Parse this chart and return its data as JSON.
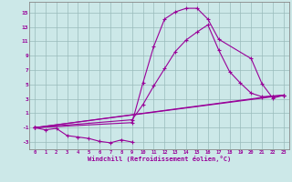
{
  "xlabel": "Windchill (Refroidissement éolien,°C)",
  "xlim": [
    -0.5,
    23.5
  ],
  "ylim": [
    -4,
    16.5
  ],
  "xticks": [
    0,
    1,
    2,
    3,
    4,
    5,
    6,
    7,
    8,
    9,
    10,
    11,
    12,
    13,
    14,
    15,
    16,
    17,
    18,
    19,
    20,
    21,
    22,
    23
  ],
  "yticks": [
    -3,
    -1,
    1,
    3,
    5,
    7,
    9,
    11,
    13,
    15
  ],
  "bg_color": "#cce8e8",
  "line_color": "#990099",
  "grid_color": "#99bbbb",
  "curve1_x": [
    0,
    1,
    2,
    3,
    4,
    5,
    6,
    7,
    8,
    9
  ],
  "curve1_y": [
    -1,
    -1.3,
    -1.1,
    -2.1,
    -2.3,
    -2.5,
    -2.9,
    -3.1,
    -2.7,
    -3.0
  ],
  "curve2_x": [
    0,
    9,
    10,
    11,
    12,
    13,
    14,
    15,
    16,
    17,
    20,
    21,
    22,
    23
  ],
  "curve2_y": [
    -1,
    -0.3,
    5.2,
    10.3,
    14.1,
    15.1,
    15.6,
    15.6,
    14.1,
    11.3,
    8.6,
    5.1,
    3.1,
    3.5
  ],
  "curve3_x": [
    0,
    9,
    10,
    11,
    12,
    13,
    14,
    15,
    16,
    17,
    18,
    19,
    20,
    21,
    22,
    23
  ],
  "curve3_y": [
    -1,
    0.1,
    2.2,
    4.8,
    7.2,
    9.6,
    11.2,
    12.3,
    13.3,
    9.8,
    6.8,
    5.2,
    3.8,
    3.3,
    3.4,
    3.5
  ],
  "curve4_x": [
    0,
    21,
    22,
    23
  ],
  "curve4_y": [
    -1,
    3.2,
    3.4,
    3.5
  ],
  "curve5_x": [
    0,
    23
  ],
  "curve5_y": [
    -1,
    3.5
  ]
}
